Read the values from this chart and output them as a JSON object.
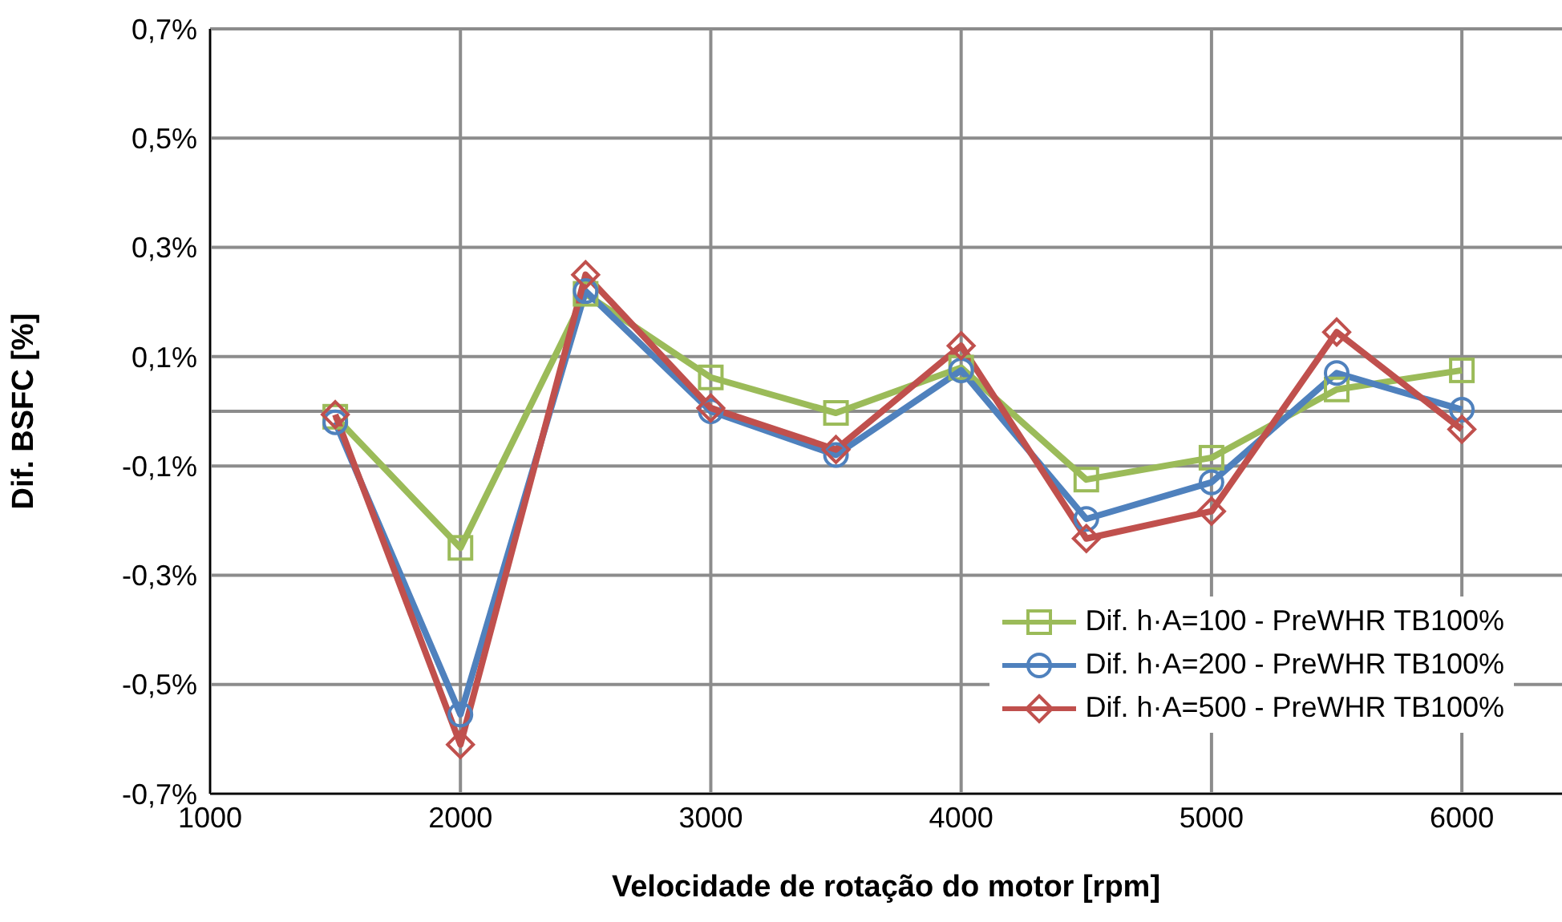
{
  "chart_data": {
    "type": "line",
    "xlabel": "Velocidade de rotação do motor [rpm]",
    "ylabel": "Dif. BSFC [%]",
    "x": [
      1500,
      2000,
      2500,
      3000,
      3500,
      4000,
      4500,
      5000,
      5500,
      6000
    ],
    "series": [
      {
        "name": "Dif. h·A=100 - PreWHR TB100%",
        "color": "#9bbb59",
        "marker": "square",
        "values": [
          -0.01,
          -0.25,
          0.215,
          0.062,
          -0.003,
          0.08,
          -0.125,
          -0.085,
          0.04,
          0.075
        ]
      },
      {
        "name": "Dif. h·A=200 - PreWHR TB100%",
        "color": "#4f81bd",
        "marker": "circle",
        "values": [
          -0.02,
          -0.555,
          0.22,
          0.0,
          -0.08,
          0.075,
          -0.197,
          -0.13,
          0.07,
          0.003
        ]
      },
      {
        "name": "Dif. h·A=500 - PreWHR TB100%",
        "color": "#c0504d",
        "marker": "diamond",
        "values": [
          -0.006,
          -0.61,
          0.25,
          0.006,
          -0.07,
          0.12,
          -0.233,
          -0.183,
          0.145,
          -0.033
        ]
      }
    ],
    "xlim": [
      1000,
      6400
    ],
    "xticks": [
      1000,
      2000,
      3000,
      4000,
      5000,
      6000
    ],
    "ylim": [
      -0.7,
      0.7
    ],
    "yticks": [
      {
        "value": -0.7,
        "label": "-0,7%"
      },
      {
        "value": -0.5,
        "label": "-0,5%"
      },
      {
        "value": -0.3,
        "label": "-0,3%"
      },
      {
        "value": -0.1,
        "label": "-0,1%"
      },
      {
        "value": 0.1,
        "label": "0,1%"
      },
      {
        "value": 0.3,
        "label": "0,3%"
      },
      {
        "value": 0.5,
        "label": "0,5%"
      },
      {
        "value": 0.7,
        "label": "0,7%"
      }
    ],
    "ref_lines": [
      {
        "axis": "y",
        "value": 0,
        "color": "#8c8c8c"
      }
    ],
    "grid": true,
    "legend": "bottom right",
    "line_style": "solid"
  }
}
